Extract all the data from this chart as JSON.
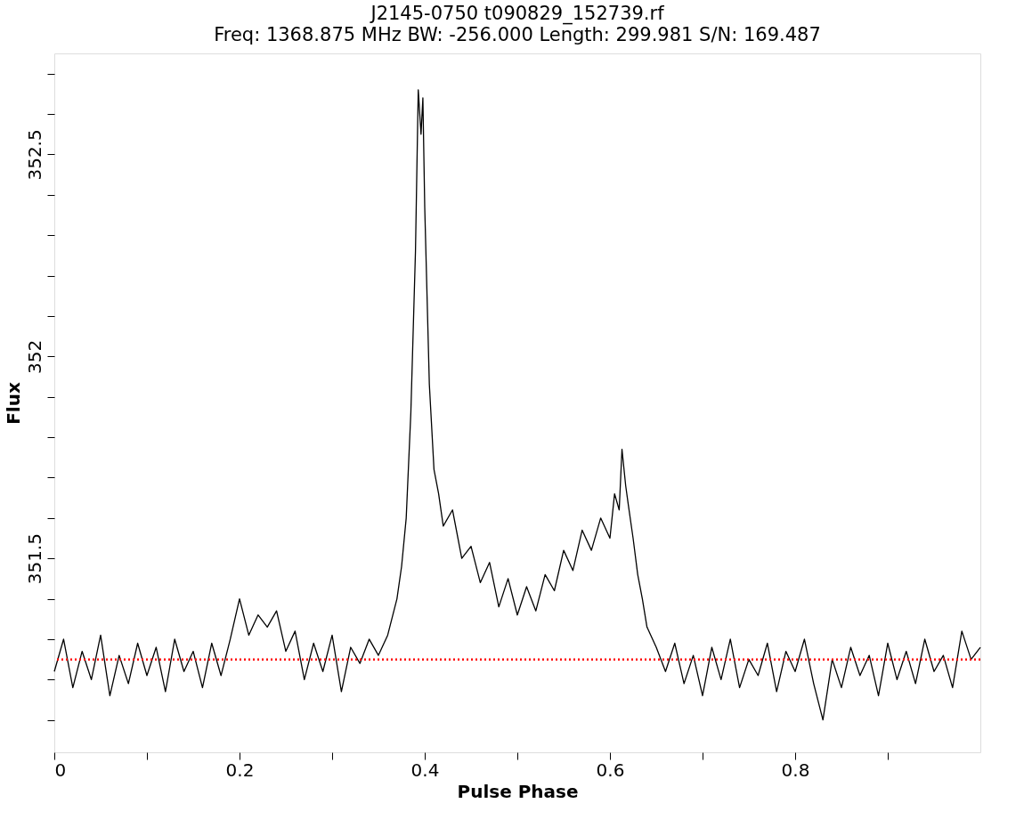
{
  "chart_data": {
    "type": "line",
    "title": "J2145-0750 t090829_152739.rf",
    "subtitle": "Freq: 1368.875 MHz BW: -256.000 Length: 299.981 S/N: 169.487",
    "xlabel": "Pulse Phase",
    "ylabel": "Flux",
    "x": [
      0.0,
      0.01,
      0.02,
      0.03,
      0.04,
      0.05,
      0.06,
      0.07,
      0.08,
      0.09,
      0.1,
      0.11,
      0.12,
      0.13,
      0.14,
      0.15,
      0.16,
      0.17,
      0.18,
      0.19,
      0.2,
      0.21,
      0.22,
      0.23,
      0.24,
      0.25,
      0.26,
      0.27,
      0.28,
      0.29,
      0.3,
      0.31,
      0.32,
      0.33,
      0.34,
      0.35,
      0.36,
      0.37,
      0.375,
      0.38,
      0.385,
      0.39,
      0.393,
      0.396,
      0.398,
      0.4,
      0.405,
      0.41,
      0.415,
      0.42,
      0.43,
      0.44,
      0.45,
      0.46,
      0.47,
      0.48,
      0.49,
      0.5,
      0.51,
      0.52,
      0.53,
      0.54,
      0.55,
      0.56,
      0.57,
      0.58,
      0.59,
      0.6,
      0.605,
      0.61,
      0.613,
      0.617,
      0.62,
      0.625,
      0.63,
      0.635,
      0.64,
      0.65,
      0.66,
      0.67,
      0.68,
      0.69,
      0.7,
      0.71,
      0.72,
      0.73,
      0.74,
      0.75,
      0.76,
      0.77,
      0.78,
      0.79,
      0.8,
      0.81,
      0.82,
      0.83,
      0.84,
      0.85,
      0.86,
      0.87,
      0.88,
      0.89,
      0.9,
      0.91,
      0.92,
      0.93,
      0.94,
      0.95,
      0.96,
      0.97,
      0.98,
      0.99,
      1.0
    ],
    "series": [
      {
        "color": "#000000",
        "values": [
          351.22,
          351.3,
          351.18,
          351.27,
          351.2,
          351.31,
          351.16,
          351.26,
          351.19,
          351.29,
          351.21,
          351.28,
          351.17,
          351.3,
          351.22,
          351.27,
          351.18,
          351.29,
          351.21,
          351.3,
          351.4,
          351.31,
          351.36,
          351.33,
          351.37,
          351.27,
          351.32,
          351.2,
          351.29,
          351.22,
          351.31,
          351.17,
          351.28,
          351.24,
          351.3,
          351.26,
          351.31,
          351.4,
          351.48,
          351.6,
          351.86,
          352.26,
          352.66,
          352.55,
          352.64,
          352.37,
          351.93,
          351.72,
          351.66,
          351.58,
          351.62,
          351.5,
          351.53,
          351.44,
          351.49,
          351.38,
          351.45,
          351.36,
          351.43,
          351.37,
          351.46,
          351.42,
          351.52,
          351.47,
          351.57,
          351.52,
          351.6,
          351.55,
          351.66,
          351.62,
          351.77,
          351.68,
          351.63,
          351.55,
          351.46,
          351.4,
          351.33,
          351.28,
          351.22,
          351.29,
          351.19,
          351.26,
          351.16,
          351.28,
          351.2,
          351.3,
          351.18,
          351.25,
          351.21,
          351.29,
          351.17,
          351.27,
          351.22,
          351.3,
          351.19,
          351.1,
          351.25,
          351.18,
          351.28,
          351.21,
          351.26,
          351.16,
          351.29,
          351.2,
          351.27,
          351.19,
          351.3,
          351.22,
          351.26,
          351.18,
          351.32,
          351.25,
          351.28
        ]
      }
    ],
    "xlim": [
      0,
      1
    ],
    "ylim": [
      351.02,
      352.75
    ],
    "xticks": [
      0,
      {
        "value": 0.1,
        "label": null
      },
      0.2,
      {
        "value": 0.3,
        "label": null
      },
      0.4,
      {
        "value": 0.5,
        "label": null
      },
      0.6,
      {
        "value": 0.7,
        "label": null
      },
      0.8,
      {
        "value": 0.9,
        "label": null
      }
    ],
    "yticks": [
      {
        "value": 351.1,
        "label": null
      },
      {
        "value": 351.2,
        "label": null
      },
      {
        "value": 351.3,
        "label": null
      },
      {
        "value": 351.4,
        "label": null
      },
      351.5,
      {
        "value": 351.6,
        "label": null
      },
      {
        "value": 351.7,
        "label": null
      },
      {
        "value": 351.8,
        "label": null
      },
      {
        "value": 351.9,
        "label": null
      },
      352,
      {
        "value": 352.1,
        "label": null
      },
      {
        "value": 352.2,
        "label": null
      },
      {
        "value": 352.3,
        "label": null
      },
      {
        "value": 352.4,
        "label": null
      },
      352.5,
      {
        "value": 352.6,
        "label": null
      },
      {
        "value": 352.7,
        "label": null
      }
    ],
    "ref_lines": [
      {
        "axis": "y",
        "value": 351.25,
        "color": "#ff0000",
        "line_style": "dotted"
      }
    ],
    "grid": false,
    "marker": "none",
    "line_style": "solid"
  }
}
